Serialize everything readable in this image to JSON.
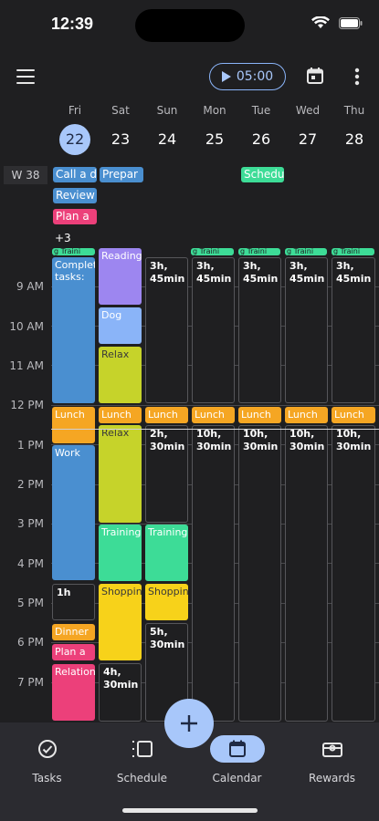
{
  "status": {
    "time": "12:39"
  },
  "header": {
    "timer_label": "05:00"
  },
  "days": [
    {
      "name": "Fri",
      "num": "22"
    },
    {
      "name": "Sat",
      "num": "23"
    },
    {
      "name": "Sun",
      "num": "24"
    },
    {
      "name": "Mon",
      "num": "25"
    },
    {
      "name": "Tue",
      "num": "26"
    },
    {
      "name": "Wed",
      "num": "27"
    },
    {
      "name": "Thu",
      "num": "28"
    }
  ],
  "week_label": "W 38",
  "allday": {
    "call": "Call a d",
    "prepare": "Prepar",
    "schedule": "Schedu",
    "review": "Review",
    "plan": "Plan a",
    "more": "+3"
  },
  "hours": [
    "9 AM",
    "10 AM",
    "11 AM",
    "12 PM",
    "1 PM",
    "2 PM",
    "3 PM",
    "4 PM",
    "5 PM",
    "6 PM",
    "7 PM"
  ],
  "events": {
    "training_top": "g  Traini",
    "complete_tasks": "Complete tasks:",
    "reading": "Reading",
    "dog": "Dog",
    "relax": "Relax",
    "lunch": "Lunch",
    "relax2": "Relax",
    "work": "Work",
    "training": "Training",
    "shopping": "Shopping",
    "dinner": "Dinner",
    "plan_a": "Plan a",
    "relationship": "Relationship"
  },
  "free": {
    "f1": "3h, 45min",
    "f2": "2h, 30min",
    "f3": "10h, 30min",
    "f4": "1h",
    "f5": "5h, 30min",
    "f6": "4h, 30min"
  },
  "nav": {
    "tasks": "Tasks",
    "schedule": "Schedule",
    "calendar": "Calendar",
    "rewards": "Rewards"
  },
  "colors": {
    "blue": "#4a8fd0",
    "pink": "#ec407a",
    "teal": "#3ddc97",
    "purple": "#9d86f0",
    "lightblue": "#8ab4f8",
    "lime": "#c6d32a",
    "orange": "#f5a623",
    "yellow": "#f7d21a",
    "accent": "#a8c7fa"
  }
}
